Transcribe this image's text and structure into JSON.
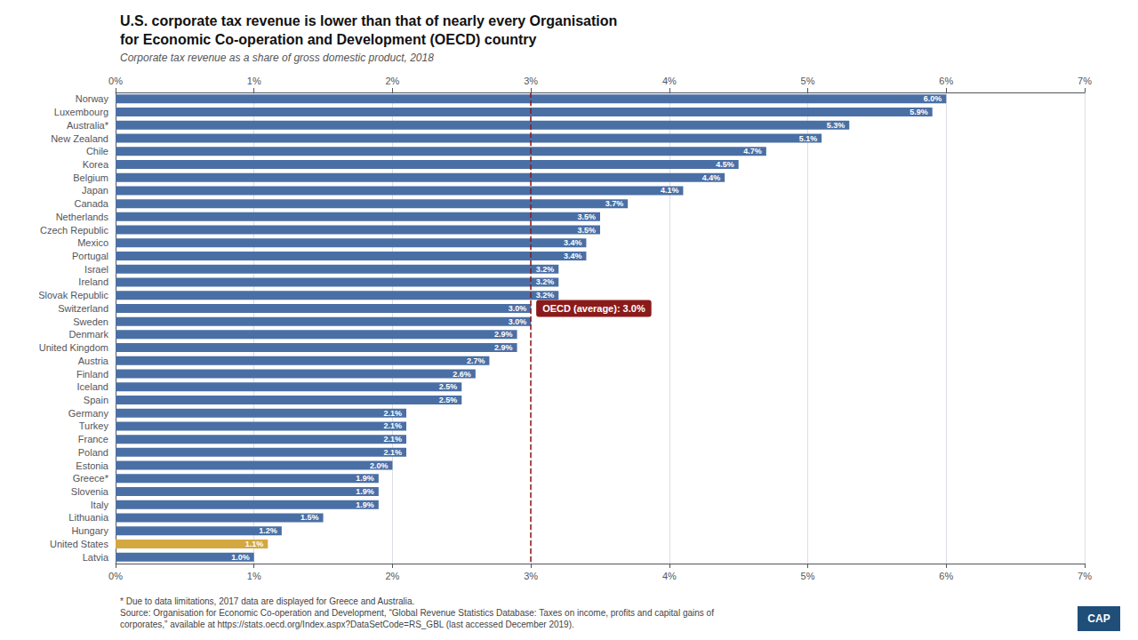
{
  "chart_data": {
    "type": "bar",
    "orientation": "horizontal",
    "title": "U.S. corporate tax revenue is lower than that of nearly every Organisation\nfor Economic Co-operation and Development (OECD) country",
    "subtitle": "Corporate tax revenue as a share of gross domestic product, 2018",
    "categories": [
      "Norway",
      "Luxembourg",
      "Australia*",
      "New Zealand",
      "Chile",
      "Korea",
      "Belgium",
      "Japan",
      "Canada",
      "Netherlands",
      "Czech Republic",
      "Mexico",
      "Portugal",
      "Israel",
      "Ireland",
      "Slovak Republic",
      "Switzerland",
      "Sweden",
      "Denmark",
      "United Kingdom",
      "Austria",
      "Finland",
      "Iceland",
      "Spain",
      "Germany",
      "Turkey",
      "France",
      "Poland",
      "Estonia",
      "Greece*",
      "Slovenia",
      "Italy",
      "Lithuania",
      "Hungary",
      "United States",
      "Latvia"
    ],
    "values": [
      6.0,
      5.9,
      5.3,
      5.1,
      4.7,
      4.5,
      4.4,
      4.1,
      3.7,
      3.5,
      3.5,
      3.4,
      3.4,
      3.2,
      3.2,
      3.2,
      3.0,
      3.0,
      2.9,
      2.9,
      2.7,
      2.6,
      2.5,
      2.5,
      2.1,
      2.1,
      2.1,
      2.1,
      2.0,
      1.9,
      1.9,
      1.9,
      1.5,
      1.2,
      1.1,
      1.0
    ],
    "value_labels": [
      "6.0%",
      "5.9%",
      "5.3%",
      "5.1%",
      "4.7%",
      "4.5%",
      "4.4%",
      "4.1%",
      "3.7%",
      "3.5%",
      "3.5%",
      "3.4%",
      "3.4%",
      "3.2%",
      "3.2%",
      "3.2%",
      "3.0%",
      "3.0%",
      "2.9%",
      "2.9%",
      "2.7%",
      "2.6%",
      "2.5%",
      "2.5%",
      "2.1%",
      "2.1%",
      "2.1%",
      "2.1%",
      "2.0%",
      "1.9%",
      "1.9%",
      "1.9%",
      "1.5%",
      "1.2%",
      "1.1%",
      "1.0%"
    ],
    "colors": [
      "#4a6fa5",
      "#4a6fa5",
      "#4a6fa5",
      "#4a6fa5",
      "#4a6fa5",
      "#4a6fa5",
      "#4a6fa5",
      "#4a6fa5",
      "#4a6fa5",
      "#4a6fa5",
      "#4a6fa5",
      "#4a6fa5",
      "#4a6fa5",
      "#4a6fa5",
      "#4a6fa5",
      "#4a6fa5",
      "#4a6fa5",
      "#4a6fa5",
      "#4a6fa5",
      "#4a6fa5",
      "#4a6fa5",
      "#4a6fa5",
      "#4a6fa5",
      "#4a6fa5",
      "#4a6fa5",
      "#4a6fa5",
      "#4a6fa5",
      "#4a6fa5",
      "#4a6fa5",
      "#4a6fa5",
      "#4a6fa5",
      "#4a6fa5",
      "#4a6fa5",
      "#4a6fa5",
      "#d4a840",
      "#4a6fa5"
    ],
    "data_labels": true,
    "xlim": [
      0,
      7
    ],
    "xticks": [
      {
        "value": 0,
        "label": "0%"
      },
      {
        "value": 1,
        "label": "1%"
      },
      {
        "value": 2,
        "label": "2%"
      },
      {
        "value": 3,
        "label": "3%"
      },
      {
        "value": 4,
        "label": "4%"
      },
      {
        "value": 5,
        "label": "5%"
      },
      {
        "value": 6,
        "label": "6%"
      },
      {
        "value": 7,
        "label": "7%"
      }
    ],
    "grid": true,
    "reference_line": {
      "value": 3.0,
      "label": "OECD (average): 3.0%",
      "color": "#8b1a1a"
    },
    "footnotes": [
      "* Due to data limitations, 2017 data are displayed for Greece and Australia.",
      "Source: Organisation for Economic Co-operation and Development, “Global Revenue Statistics Database: Taxes on income, profits and capital gains of",
      "corporates,” available at https://stats.oecd.org/Index.aspx?DataSetCode=RS_GBL (last accessed December 2019)."
    ],
    "logo": {
      "text": "CAP",
      "color": "#1f4e79"
    }
  }
}
